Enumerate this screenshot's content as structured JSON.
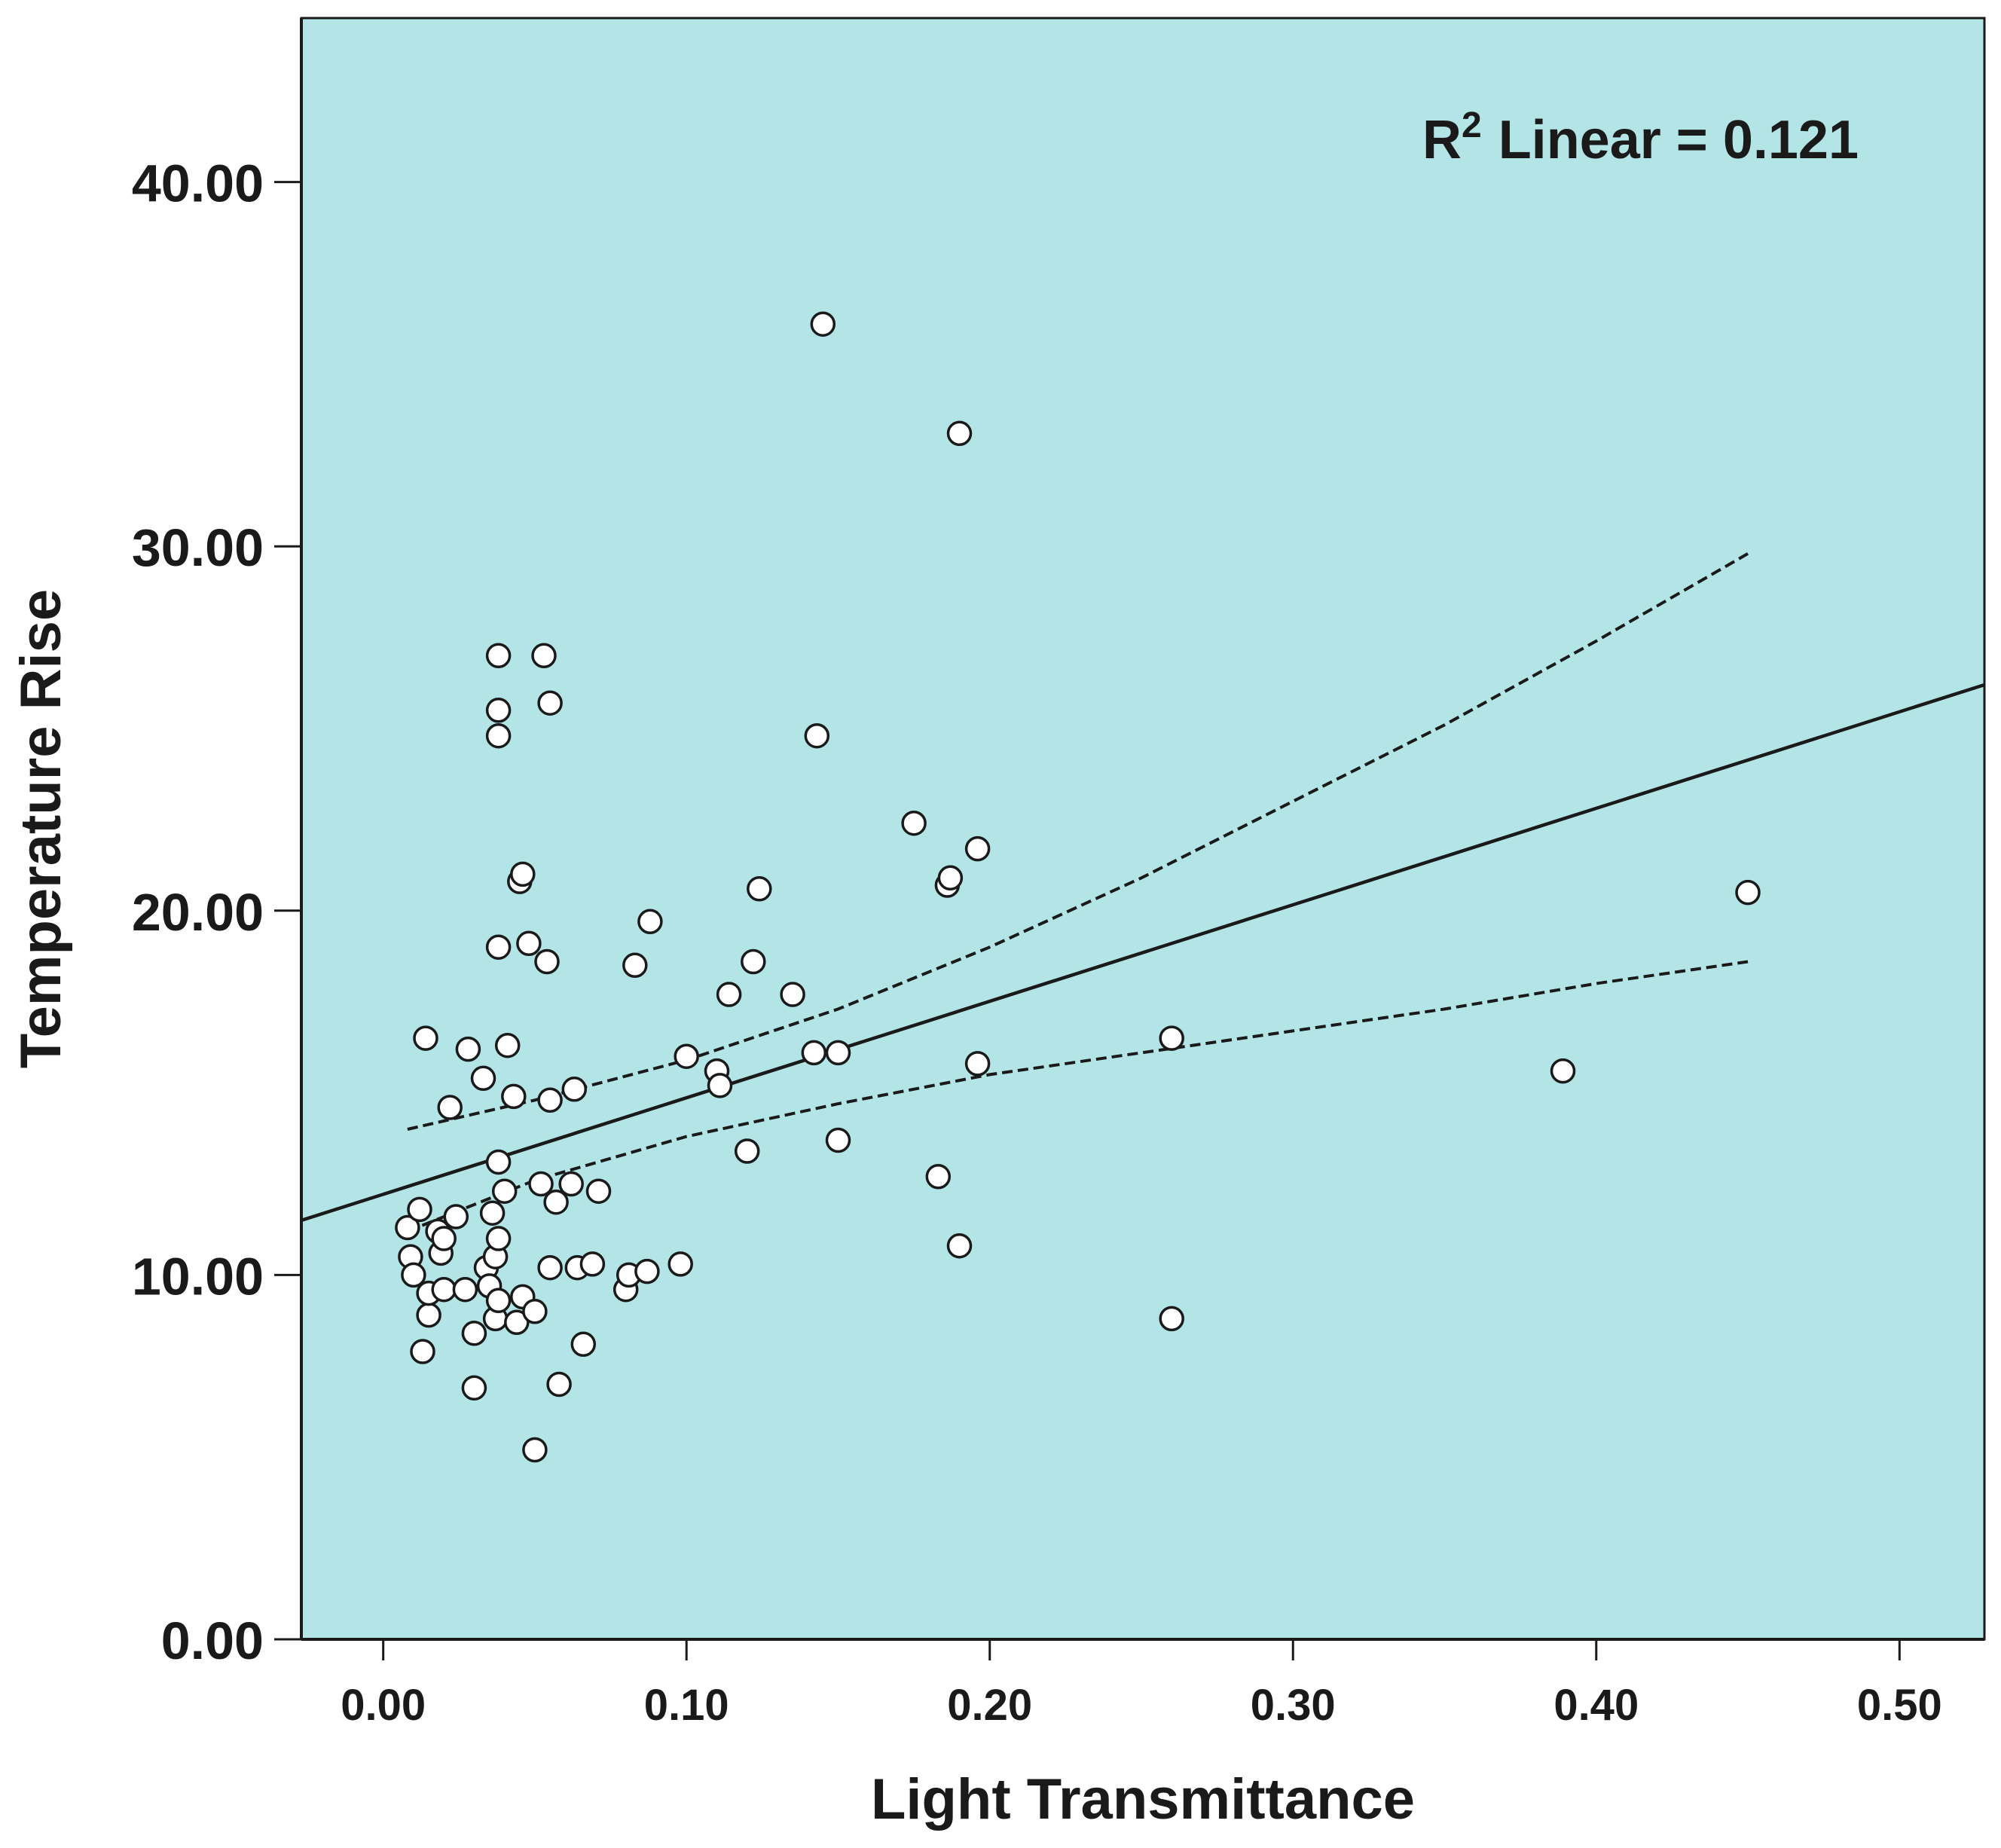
{
  "chart_data": {
    "type": "scatter",
    "xlabel": "Light Transmittance",
    "ylabel": "Temperature Rise",
    "xlim": [
      -0.027,
      0.528
    ],
    "ylim": [
      0,
      44.5
    ],
    "x_ticks": [
      0.0,
      0.1,
      0.2,
      0.3,
      0.4,
      0.5
    ],
    "x_tick_labels": [
      "0.00",
      "0.10",
      "0.20",
      "0.30",
      "0.40",
      "0.50"
    ],
    "y_ticks": [
      0,
      10,
      20,
      30,
      40
    ],
    "y_tick_labels": [
      "0.00",
      "10.00",
      "20.00",
      "30.00",
      "40.00"
    ],
    "annotation": {
      "prefix": "R",
      "superscript": "2",
      "text": "Linear = 0.121"
    },
    "colors": {
      "plot_background": "#b3e5e6",
      "marker_fill": "#ffffff",
      "stroke": "#1a1a1a"
    },
    "fit_line": {
      "x0": -0.027,
      "y0": 11.5,
      "x1": 0.528,
      "y1": 26.2
    },
    "ci_upper": {
      "x": [
        0.008,
        0.05,
        0.1,
        0.15,
        0.2,
        0.25,
        0.3,
        0.35,
        0.4,
        0.45
      ],
      "y": [
        14.0,
        14.8,
        15.9,
        17.3,
        19.0,
        20.9,
        23.0,
        25.1,
        27.4,
        29.8
      ]
    },
    "ci_lower": {
      "x": [
        0.008,
        0.05,
        0.1,
        0.15,
        0.2,
        0.25,
        0.3,
        0.35,
        0.4,
        0.45
      ],
      "y": [
        11.2,
        12.6,
        13.8,
        14.7,
        15.5,
        16.1,
        16.7,
        17.3,
        18.0,
        18.6
      ]
    },
    "points": [
      [
        0.008,
        11.3
      ],
      [
        0.009,
        10.5
      ],
      [
        0.01,
        10.0
      ],
      [
        0.012,
        11.8
      ],
      [
        0.013,
        7.9
      ],
      [
        0.014,
        16.5
      ],
      [
        0.015,
        8.9
      ],
      [
        0.015,
        9.5
      ],
      [
        0.018,
        11.2
      ],
      [
        0.019,
        10.6
      ],
      [
        0.02,
        11.0
      ],
      [
        0.02,
        9.6
      ],
      [
        0.022,
        14.6
      ],
      [
        0.024,
        11.6
      ],
      [
        0.027,
        9.6
      ],
      [
        0.028,
        16.2
      ],
      [
        0.03,
        8.4
      ],
      [
        0.03,
        6.9
      ],
      [
        0.033,
        15.4
      ],
      [
        0.034,
        10.2
      ],
      [
        0.035,
        9.7
      ],
      [
        0.036,
        11.7
      ],
      [
        0.037,
        10.5
      ],
      [
        0.037,
        8.8
      ],
      [
        0.038,
        9.3
      ],
      [
        0.038,
        13.1
      ],
      [
        0.038,
        11.0
      ],
      [
        0.038,
        19.0
      ],
      [
        0.038,
        27.0
      ],
      [
        0.038,
        25.5
      ],
      [
        0.038,
        24.8
      ],
      [
        0.04,
        12.3
      ],
      [
        0.041,
        16.3
      ],
      [
        0.043,
        14.9
      ],
      [
        0.044,
        8.7
      ],
      [
        0.045,
        20.8
      ],
      [
        0.046,
        21.0
      ],
      [
        0.046,
        9.4
      ],
      [
        0.048,
        19.1
      ],
      [
        0.05,
        9.0
      ],
      [
        0.05,
        5.2
      ],
      [
        0.052,
        12.5
      ],
      [
        0.053,
        27.0
      ],
      [
        0.054,
        18.6
      ],
      [
        0.055,
        14.8
      ],
      [
        0.055,
        25.7
      ],
      [
        0.055,
        10.2
      ],
      [
        0.057,
        12.0
      ],
      [
        0.058,
        7.0
      ],
      [
        0.062,
        12.5
      ],
      [
        0.063,
        15.1
      ],
      [
        0.064,
        10.2
      ],
      [
        0.066,
        8.1
      ],
      [
        0.069,
        10.3
      ],
      [
        0.071,
        12.3
      ],
      [
        0.08,
        9.6
      ],
      [
        0.081,
        10.0
      ],
      [
        0.083,
        18.5
      ],
      [
        0.087,
        10.1
      ],
      [
        0.088,
        19.7
      ],
      [
        0.098,
        10.3
      ],
      [
        0.1,
        16.0
      ],
      [
        0.11,
        15.6
      ],
      [
        0.111,
        15.2
      ],
      [
        0.114,
        17.7
      ],
      [
        0.12,
        13.4
      ],
      [
        0.122,
        18.6
      ],
      [
        0.124,
        20.6
      ],
      [
        0.135,
        17.7
      ],
      [
        0.142,
        16.1
      ],
      [
        0.143,
        24.8
      ],
      [
        0.145,
        36.1
      ],
      [
        0.15,
        13.7
      ],
      [
        0.15,
        16.1
      ],
      [
        0.175,
        22.4
      ],
      [
        0.183,
        12.7
      ],
      [
        0.186,
        20.7
      ],
      [
        0.187,
        20.9
      ],
      [
        0.19,
        10.8
      ],
      [
        0.19,
        33.1
      ],
      [
        0.196,
        15.8
      ],
      [
        0.196,
        21.7
      ],
      [
        0.26,
        16.5
      ],
      [
        0.26,
        8.8
      ],
      [
        0.389,
        15.6
      ],
      [
        0.45,
        20.5
      ]
    ]
  }
}
